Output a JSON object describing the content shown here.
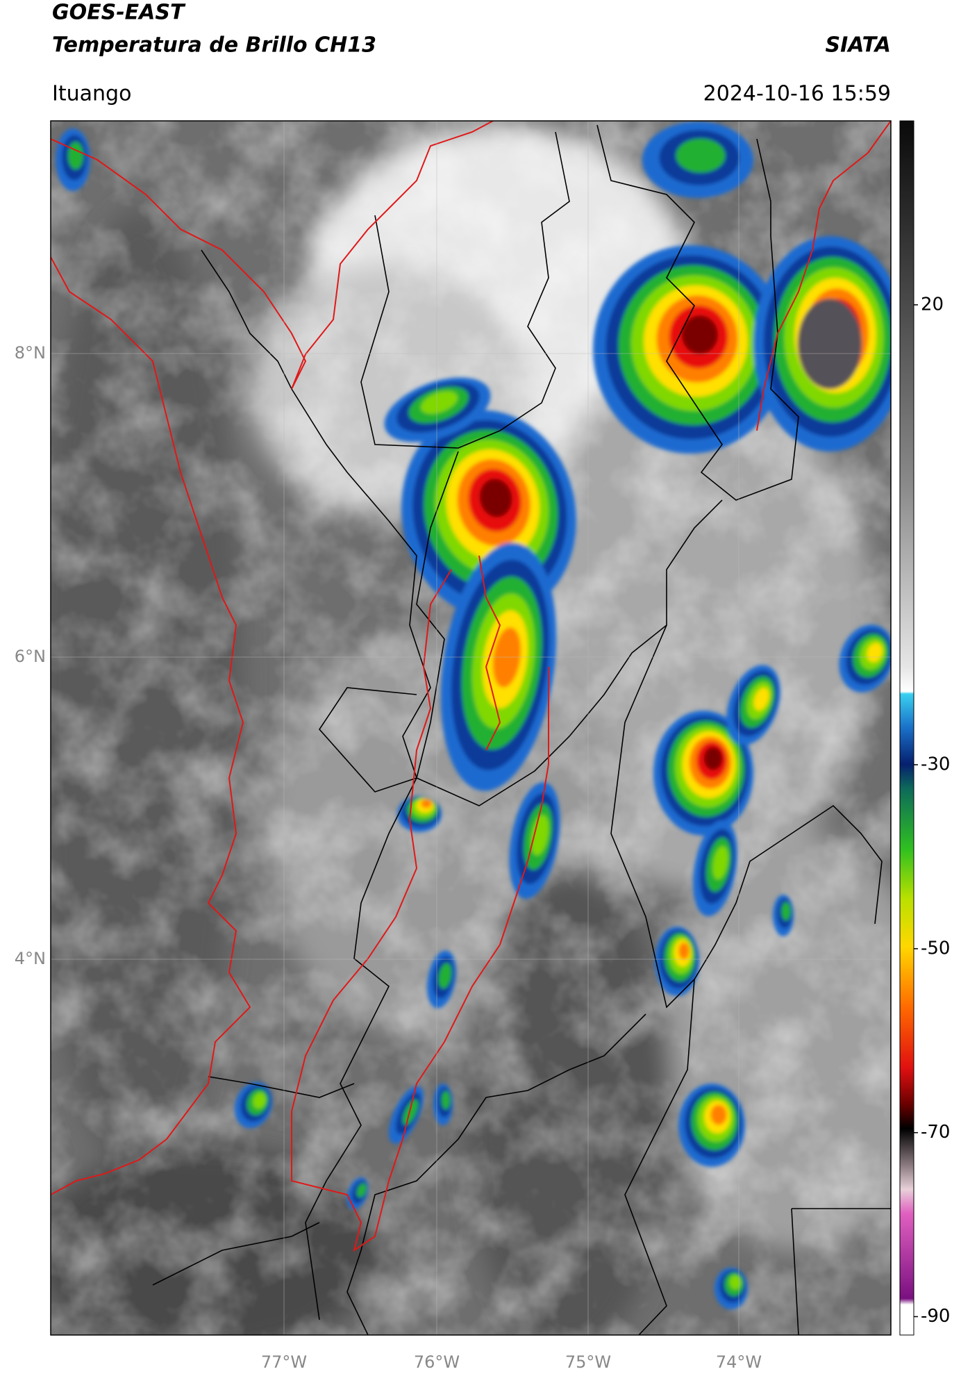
{
  "header": {
    "title_line1": "GOES-EAST",
    "title_line2": "Temperatura de Brillo CH13",
    "organization": "SIATA",
    "location": "Ituango",
    "datetime": "2024-10-16 15:59"
  },
  "map": {
    "lat_labels": [
      "8°N",
      "6°N",
      "4°N"
    ],
    "lon_labels": [
      "77°W",
      "76°W",
      "75°W",
      "74°W"
    ]
  },
  "colorbar": {
    "range": [
      -92,
      40
    ],
    "ticks": [
      20,
      -30,
      -50,
      -70,
      -90
    ]
  }
}
